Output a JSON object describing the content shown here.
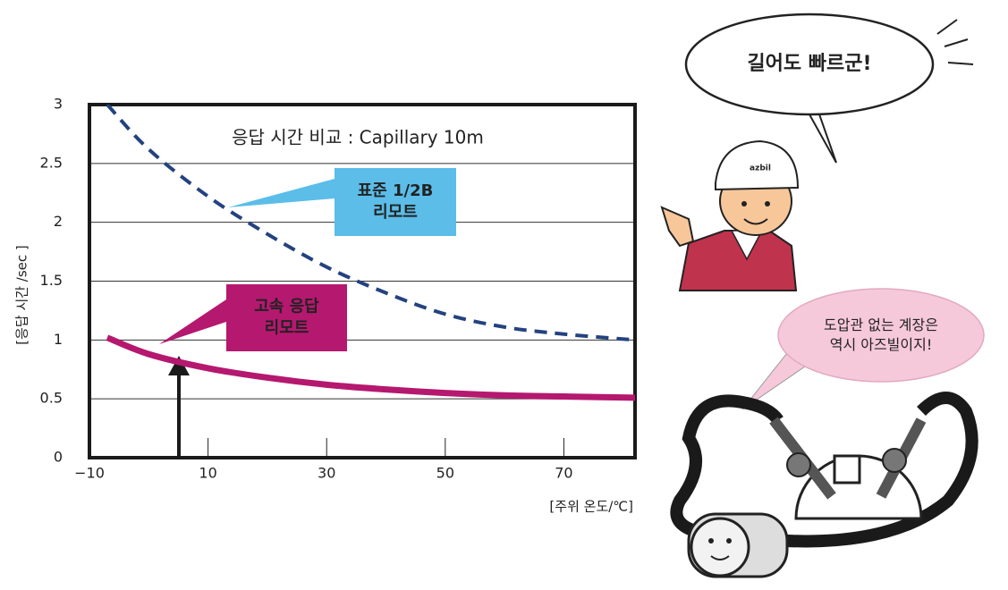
{
  "chart_data": {
    "type": "line",
    "title": "응답 시간 비교 : Capillary  10m",
    "x_label": "[주위 온도/℃]",
    "y_label": "[응답 시간 /sec ]",
    "x": [
      -7,
      0,
      10,
      20,
      30,
      40,
      50,
      60,
      70,
      82
    ],
    "series": [
      {
        "name": "표준 1/2B\n리모트",
        "color": "#24427f",
        "dashed": true,
        "label_color": "#5bbde8",
        "label_text_color": "#1d2f66",
        "values": [
          3.0,
          2.62,
          2.22,
          1.9,
          1.62,
          1.4,
          1.22,
          1.11,
          1.05,
          1.0
        ]
      },
      {
        "name": "고속 응답\n리모트",
        "color": "#b5186f",
        "dashed": false,
        "label_color": "#b5186f",
        "label_text_color": "#ffffff",
        "values": [
          1.02,
          0.88,
          0.76,
          0.68,
          0.62,
          0.58,
          0.55,
          0.53,
          0.52,
          0.51
        ]
      }
    ],
    "xlim": [
      -10,
      82
    ],
    "ylim": [
      0,
      3
    ],
    "xticks": [
      {
        "value": -10,
        "label": "−10"
      },
      10,
      30,
      50,
      70
    ],
    "yticks": [
      0,
      0.5,
      1,
      1.5,
      2,
      2.5,
      3
    ],
    "grid": true
  },
  "illustration": {
    "speech_top": "길어도 빠르군!",
    "speech_bottom": "도압관 없는 계장은\n역시 아즈빌이지!",
    "helmet_logo": "azbil"
  }
}
